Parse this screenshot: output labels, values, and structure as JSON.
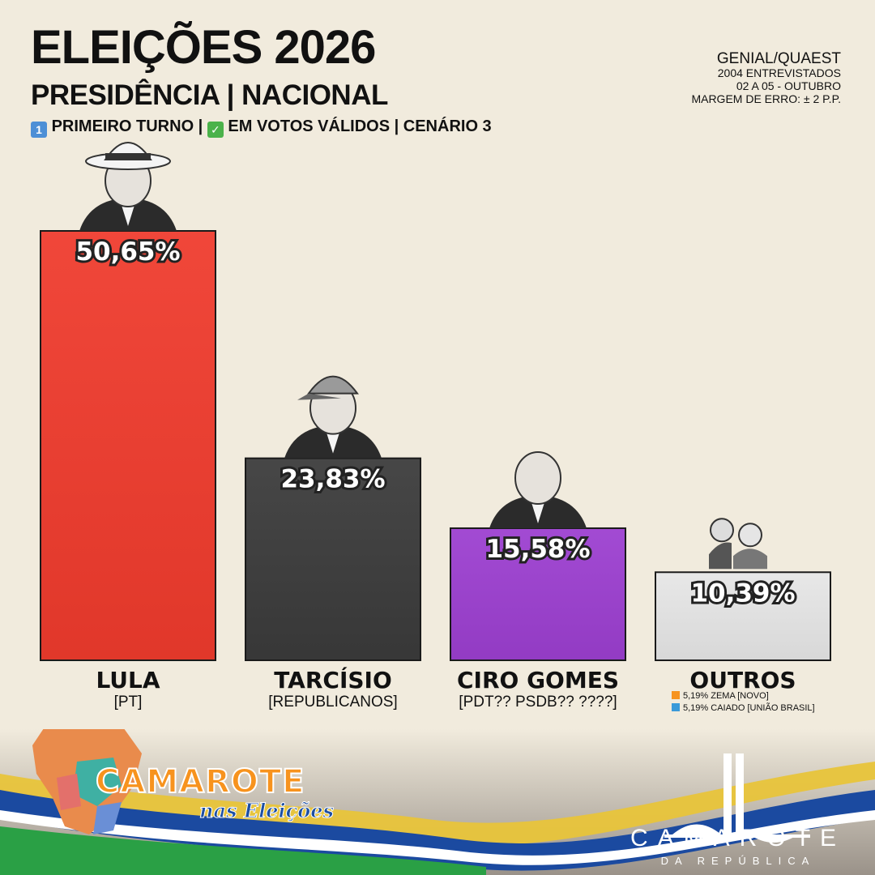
{
  "header": {
    "title": "ELEIÇÕES 2026",
    "subtitle": "PRESIDÊNCIA | NACIONAL",
    "scenario_part1": "PRIMEIRO TURNO |",
    "scenario_part2": "EM VOTOS VÁLIDOS | CENÁRIO 3",
    "scenario_icon_1": "keycap-one-icon",
    "scenario_icon_2": "check-mark-icon"
  },
  "source": {
    "pollster": "GENIAL/QUAEST",
    "sample": "2004 ENTREVISTADOS",
    "dates": "02 A 05 - OUTUBRO",
    "margin": "MARGEM DE ERRO: ± 2 P.P."
  },
  "chart_data": {
    "type": "bar",
    "categories": [
      "LULA",
      "TARCÍSIO",
      "CIRO GOMES",
      "OUTROS"
    ],
    "parties": [
      "[PT]",
      "[REPUBLICANOS]",
      "[PDT?? PSDB?? ????]",
      ""
    ],
    "values": [
      50.65,
      23.83,
      15.58,
      10.39
    ],
    "value_labels": [
      "50,65%",
      "23,83%",
      "15,58%",
      "10,39%"
    ],
    "colors": [
      "#ef3b2d",
      "#3b3b3b",
      "#9c3fd0",
      "#e6e6e6"
    ],
    "ylim": [
      0,
      50.65
    ],
    "notes": [
      {
        "text": "5,19% ZEMA [NOVO]",
        "color": "#f7931e"
      },
      {
        "text": "5,19% CAIADO [UNIÃO BRASIL]",
        "color": "#3a9ad9"
      }
    ]
  },
  "footer": {
    "left_brand": "CAMAROTE",
    "left_brand_sub": "nas Eleições",
    "right_brand": "CAMAROTE",
    "right_brand_sub": "DA REPÚBLICA"
  }
}
